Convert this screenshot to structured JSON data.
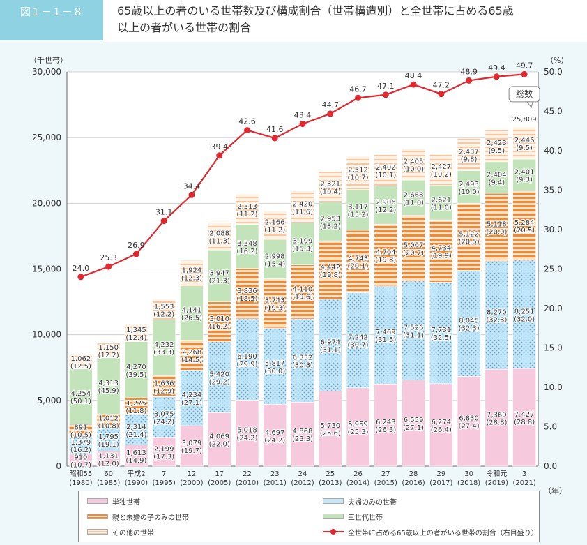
{
  "figure_label": "図１－１－８",
  "title_line1": "65歳以上の者のいる世帯数及び構成割合（世帯構造別）と全世帯に占める65歳",
  "title_line2": "以上の者がいる世帯の割合",
  "left_axis_unit": "（千世帯）",
  "right_axis_unit": "（%）",
  "x_axis_unit": "（年）",
  "total_label": "総数",
  "colors": {
    "single": "#f7c9dc",
    "couple": "#bfe3f5",
    "parent_child": "#f29a4c",
    "three_gen": "#bfe0b8",
    "other": "#fce0c8",
    "line": "#e0282e",
    "grid": "#c9c9c9",
    "badge": "#8fd3e3"
  },
  "chart_data": {
    "type": "bar",
    "stacked": true,
    "categories": [
      {
        "era": "昭和55",
        "year": "(1980)"
      },
      {
        "era": "60",
        "year": "(1985)"
      },
      {
        "era": "平成2",
        "year": "(1990)"
      },
      {
        "era": "7",
        "year": "(1995)"
      },
      {
        "era": "12",
        "year": "(2000)"
      },
      {
        "era": "17",
        "year": "(2005)"
      },
      {
        "era": "22",
        "year": "(2010)"
      },
      {
        "era": "23",
        "year": "(2011)"
      },
      {
        "era": "24",
        "year": "(2012)"
      },
      {
        "era": "25",
        "year": "(2013)"
      },
      {
        "era": "26",
        "year": "(2014)"
      },
      {
        "era": "27",
        "year": "(2015)"
      },
      {
        "era": "28",
        "year": "(2016)"
      },
      {
        "era": "29",
        "year": "(2017)"
      },
      {
        "era": "30",
        "year": "(2018)"
      },
      {
        "era": "令和元",
        "year": "(2019)"
      },
      {
        "era": "3",
        "year": "(2021)"
      }
    ],
    "series": [
      {
        "key": "single",
        "name": "単独世帯",
        "values": [
          910,
          1131,
          1613,
          2199,
          3079,
          4069,
          5018,
          4697,
          4868,
          5730,
          5959,
          6243,
          6559,
          6274,
          6830,
          7369,
          7427
        ],
        "value_labels": [
          "910",
          "1,131",
          "1,613",
          "2,199",
          "3,079",
          "4,069",
          "5,018",
          "4,697",
          "4,868",
          "5,730",
          "5,959",
          "6,243",
          "6,559",
          "6,274",
          "6,830",
          "7,369",
          "7,427"
        ],
        "shares": [
          "(10.7)",
          "(12.0)",
          "(14.9)",
          "(17.3)",
          "(19.7)",
          "(22.0)",
          "(24.2)",
          "(24.2)",
          "(23.3)",
          "(25.6)",
          "(25.3)",
          "(26.3)",
          "(27.1)",
          "(26.4)",
          "(27.4)",
          "(28.8)",
          "(28.8)"
        ]
      },
      {
        "key": "couple",
        "name": "夫婦のみの世帯",
        "values": [
          1379,
          1795,
          2314,
          3075,
          4234,
          5420,
          6190,
          5817,
          6332,
          6974,
          7242,
          7469,
          7526,
          7731,
          8045,
          8270,
          8251
        ],
        "value_labels": [
          "1,379",
          "1,795",
          "2,314",
          "3,075",
          "4,234",
          "5,420",
          "6,190",
          "5,817",
          "6,332",
          "6,974",
          "7,242",
          "7,469",
          "7,526",
          "7,731",
          "8,045",
          "8,270",
          "8,251"
        ],
        "shares": [
          "(16.2)",
          "(19.1)",
          "(21.4)",
          "(24.2)",
          "(27.1)",
          "(29.2)",
          "(29.9)",
          "(30.0)",
          "(30.3)",
          "(31.1)",
          "(30.7)",
          "(31.5)",
          "(31.1)",
          "(32.5)",
          "(32.3)",
          "(32.3)",
          "(32.0)"
        ]
      },
      {
        "key": "parent_child",
        "name": "親と未婚の子のみの世帯",
        "values": [
          891,
          1012,
          1275,
          1636,
          2268,
          3010,
          3836,
          3743,
          4110,
          4442,
          4743,
          4704,
          5007,
          4734,
          5122,
          5118,
          5284
        ],
        "value_labels": [
          "891",
          "1,012",
          "1,275",
          "1,636",
          "2,268",
          "3,010",
          "3,836",
          "3,743",
          "4,110",
          "4,442",
          "4,743",
          "4,704",
          "5,007",
          "4,734",
          "5,122",
          "5,118",
          "5,284"
        ],
        "shares": [
          "(10.5)",
          "(10.8)",
          "(11.8)",
          "(12.9)",
          "(14.5)",
          "(16.2)",
          "(18.5)",
          "(19.3)",
          "(19.6)",
          "(19.8)",
          "(20.1)",
          "(19.8)",
          "(20.7)",
          "(19.9)",
          "(20.5)",
          "(20.0)",
          "(20.5)"
        ]
      },
      {
        "key": "three_gen",
        "name": "三世代世帯",
        "values": [
          4254,
          4313,
          4270,
          4232,
          4141,
          3947,
          3348,
          2998,
          3199,
          2953,
          3117,
          2906,
          2668,
          2621,
          2493,
          2404,
          2401
        ],
        "value_labels": [
          "4,254",
          "4,313",
          "4,270",
          "4,232",
          "4,141",
          "3,947",
          "3,348",
          "2,998",
          "3,199",
          "2,953",
          "3,117",
          "2,906",
          "2,668",
          "2,621",
          "2,493",
          "2,404",
          "2,401"
        ],
        "shares": [
          "(50.1)",
          "(45.9)",
          "(39.5)",
          "(33.3)",
          "(26.5)",
          "(21.3)",
          "(16.2)",
          "(15.4)",
          "(15.3)",
          "(13.2)",
          "(13.2)",
          "(12.2)",
          "(11.0)",
          "(11.0)",
          "(10.0)",
          "(9.4)",
          "(9.3)"
        ]
      },
      {
        "key": "other",
        "name": "その他の世帯",
        "values": [
          1062,
          1150,
          1345,
          1553,
          1924,
          2088,
          2313,
          2166,
          2420,
          2321,
          2512,
          2402,
          2405,
          2427,
          2437,
          2423,
          2446
        ],
        "value_labels": [
          "1,062",
          "1,150",
          "1,345",
          "1,553",
          "1,924",
          "2,088",
          "2,313",
          "2,166",
          "2,420",
          "2,321",
          "2,512",
          "2,402",
          "2,405",
          "2,427",
          "2,437",
          "2,423",
          "2,446"
        ],
        "shares": [
          "(12.5)",
          "(12.2)",
          "(12.4)",
          "(12.2)",
          "(12.3)",
          "(11.3)",
          "(11.2)",
          "(11.2)",
          "(11.6)",
          "(10.4)",
          "(10.7)",
          "(10.1)",
          "(10.0)",
          "(10.2)",
          "(9.8)",
          "(9.5)",
          "(9.5)"
        ]
      }
    ],
    "line": {
      "name": "全世帯に占める65歳以上の者がいる世帯の割合（右目盛り）",
      "values": [
        24.0,
        25.3,
        26.9,
        31.1,
        34.4,
        39.4,
        42.6,
        41.6,
        43.4,
        44.7,
        46.7,
        47.1,
        48.4,
        47.2,
        48.9,
        49.4,
        49.7
      ],
      "value_labels": [
        "24.0",
        "25.3",
        "26.9",
        "31.1",
        "34.4",
        "39.4",
        "42.6",
        "41.6",
        "43.4",
        "44.7",
        "46.7",
        "47.1",
        "48.4",
        "47.2",
        "48.9",
        "49.4",
        "49.7"
      ]
    },
    "total_last": "25,809",
    "ylim_left": [
      0,
      30000
    ],
    "yticks_left": [
      "0",
      "5,000",
      "10,000",
      "15,000",
      "20,000",
      "25,000",
      "30,000"
    ],
    "ylim_right": [
      0,
      50
    ],
    "yticks_right": [
      "0.0",
      "5.0",
      "10.0",
      "15.0",
      "20.0",
      "25.0",
      "30.0",
      "35.0",
      "40.0",
      "45.0",
      "50.0"
    ],
    "grid": true,
    "legend_position": "bottom"
  }
}
